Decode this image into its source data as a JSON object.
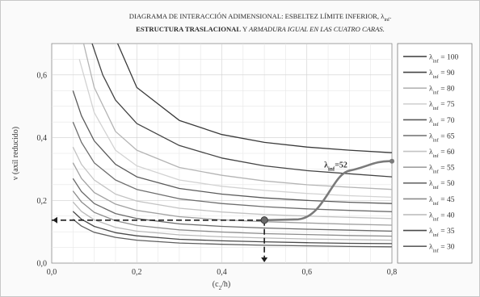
{
  "chart_data": {
    "type": "line",
    "title_line1_main": "DIAGRAMA DE INTERACCIÓN ADIMENSIONAL: ESBELTEZ LÍMITE INFERIOR, λ",
    "title_line1_sub": "inf",
    "title_line2_bold": "ESTRUCTURA TRASLACIONAL",
    "title_line2_joiner": " Y ",
    "title_line2_italic": "ARMADURA IGUAL EN LAS CUATRO CARAS.",
    "xlabel": "(c2/h)",
    "xlabel_pre": "(c",
    "xlabel_sub": "2",
    "xlabel_post": "/h)",
    "ylabel": "ν (axil reducido)",
    "xlim": [
      0,
      0.8
    ],
    "ylim": [
      0,
      0.7
    ],
    "x_ticks": [
      0,
      0.2,
      0.4,
      0.6,
      0.8
    ],
    "x_tick_labels": [
      "0,0",
      "0,2",
      "0,4",
      "0,6",
      "0,8"
    ],
    "y_ticks": [
      0,
      0.2,
      0.4,
      0.6
    ],
    "y_tick_labels": [
      "0,0",
      "0,2",
      "0,4",
      "0,6"
    ],
    "grid": true,
    "legend_position": "right",
    "legend_label_pre": "λ",
    "legend_label_sub": "inf",
    "series": [
      {
        "name": "λinf = 100",
        "label_value": "100",
        "color": "#3a3a3a",
        "points": [
          [
            0.155,
            0.7
          ],
          [
            0.2,
            0.56
          ],
          [
            0.3,
            0.455
          ],
          [
            0.4,
            0.41
          ],
          [
            0.5,
            0.385
          ],
          [
            0.6,
            0.37
          ],
          [
            0.7,
            0.36
          ],
          [
            0.8,
            0.352
          ]
        ]
      },
      {
        "name": "λinf = 90",
        "label_value": "90",
        "color": "#444444",
        "points": [
          [
            0.095,
            0.7
          ],
          [
            0.12,
            0.6
          ],
          [
            0.15,
            0.52
          ],
          [
            0.2,
            0.445
          ],
          [
            0.3,
            0.375
          ],
          [
            0.4,
            0.335
          ],
          [
            0.5,
            0.31
          ],
          [
            0.6,
            0.295
          ],
          [
            0.7,
            0.285
          ],
          [
            0.8,
            0.275
          ]
        ]
      },
      {
        "name": "λinf = 80",
        "label_value": "80",
        "color": "#b4b4b4",
        "points": [
          [
            0.075,
            0.7
          ],
          [
            0.1,
            0.56
          ],
          [
            0.15,
            0.42
          ],
          [
            0.2,
            0.36
          ],
          [
            0.3,
            0.305
          ],
          [
            0.4,
            0.28
          ],
          [
            0.5,
            0.262
          ],
          [
            0.6,
            0.25
          ],
          [
            0.7,
            0.242
          ],
          [
            0.8,
            0.235
          ]
        ]
      },
      {
        "name": "λinf = 75",
        "label_value": "75",
        "color": "#d2d2d2",
        "points": [
          [
            0.065,
            0.65
          ],
          [
            0.1,
            0.48
          ],
          [
            0.15,
            0.36
          ],
          [
            0.2,
            0.31
          ],
          [
            0.3,
            0.265
          ],
          [
            0.4,
            0.245
          ],
          [
            0.5,
            0.232
          ],
          [
            0.6,
            0.222
          ],
          [
            0.7,
            0.215
          ],
          [
            0.8,
            0.21
          ]
        ]
      },
      {
        "name": "λinf = 70",
        "label_value": "70",
        "color": "#5a5a5a",
        "points": [
          [
            0.05,
            0.55
          ],
          [
            0.07,
            0.47
          ],
          [
            0.1,
            0.39
          ],
          [
            0.15,
            0.315
          ],
          [
            0.2,
            0.275
          ],
          [
            0.3,
            0.238
          ],
          [
            0.4,
            0.22
          ],
          [
            0.5,
            0.208
          ],
          [
            0.6,
            0.2
          ],
          [
            0.7,
            0.194
          ],
          [
            0.8,
            0.19
          ]
        ]
      },
      {
        "name": "λinf = 65",
        "label_value": "65",
        "color": "#6e6e6e",
        "points": [
          [
            0.05,
            0.45
          ],
          [
            0.07,
            0.385
          ],
          [
            0.1,
            0.32
          ],
          [
            0.15,
            0.265
          ],
          [
            0.2,
            0.235
          ],
          [
            0.3,
            0.205
          ],
          [
            0.4,
            0.19
          ],
          [
            0.5,
            0.18
          ],
          [
            0.6,
            0.173
          ],
          [
            0.7,
            0.168
          ],
          [
            0.8,
            0.164
          ]
        ]
      },
      {
        "name": "λinf = 60",
        "label_value": "60",
        "color": "#c3c3c3",
        "points": [
          [
            0.05,
            0.37
          ],
          [
            0.07,
            0.315
          ],
          [
            0.1,
            0.265
          ],
          [
            0.15,
            0.22
          ],
          [
            0.2,
            0.198
          ],
          [
            0.3,
            0.175
          ],
          [
            0.4,
            0.163
          ],
          [
            0.5,
            0.155
          ],
          [
            0.6,
            0.15
          ],
          [
            0.7,
            0.146
          ],
          [
            0.8,
            0.142
          ]
        ]
      },
      {
        "name": "λinf = 55",
        "label_value": "55",
        "color": "#a0a0a0",
        "points": [
          [
            0.05,
            0.32
          ],
          [
            0.07,
            0.27
          ],
          [
            0.1,
            0.225
          ],
          [
            0.15,
            0.188
          ],
          [
            0.2,
            0.168
          ],
          [
            0.3,
            0.148
          ],
          [
            0.4,
            0.138
          ],
          [
            0.5,
            0.132
          ],
          [
            0.6,
            0.128
          ],
          [
            0.7,
            0.124
          ],
          [
            0.8,
            0.121
          ]
        ]
      },
      {
        "name": "λinf = 50",
        "label_value": "50",
        "color": "#6a6a6a",
        "points": [
          [
            0.05,
            0.27
          ],
          [
            0.07,
            0.228
          ],
          [
            0.1,
            0.19
          ],
          [
            0.15,
            0.158
          ],
          [
            0.2,
            0.142
          ],
          [
            0.3,
            0.125
          ],
          [
            0.4,
            0.117
          ],
          [
            0.5,
            0.112
          ],
          [
            0.6,
            0.108
          ],
          [
            0.7,
            0.105
          ],
          [
            0.8,
            0.102
          ]
        ]
      },
      {
        "name": "λinf = 45",
        "label_value": "45",
        "color": "#8c8c8c",
        "points": [
          [
            0.05,
            0.23
          ],
          [
            0.07,
            0.195
          ],
          [
            0.1,
            0.162
          ],
          [
            0.15,
            0.135
          ],
          [
            0.2,
            0.12
          ],
          [
            0.3,
            0.106
          ],
          [
            0.4,
            0.099
          ],
          [
            0.5,
            0.094
          ],
          [
            0.6,
            0.091
          ],
          [
            0.7,
            0.088
          ],
          [
            0.8,
            0.086
          ]
        ]
      },
      {
        "name": "λinf = 40",
        "label_value": "40",
        "color": "#b9b9b9",
        "points": [
          [
            0.05,
            0.195
          ],
          [
            0.07,
            0.165
          ],
          [
            0.1,
            0.138
          ],
          [
            0.15,
            0.114
          ],
          [
            0.2,
            0.102
          ],
          [
            0.3,
            0.09
          ],
          [
            0.4,
            0.084
          ],
          [
            0.5,
            0.08
          ],
          [
            0.6,
            0.077
          ],
          [
            0.7,
            0.075
          ],
          [
            0.8,
            0.073
          ]
        ]
      },
      {
        "name": "λinf = 35",
        "label_value": "35",
        "color": "#4a4a4a",
        "points": [
          [
            0.05,
            0.165
          ],
          [
            0.07,
            0.14
          ],
          [
            0.1,
            0.117
          ],
          [
            0.15,
            0.097
          ],
          [
            0.2,
            0.087
          ],
          [
            0.3,
            0.076
          ],
          [
            0.4,
            0.071
          ],
          [
            0.5,
            0.068
          ],
          [
            0.6,
            0.065
          ],
          [
            0.7,
            0.063
          ],
          [
            0.8,
            0.062
          ]
        ]
      },
      {
        "name": "λinf = 30",
        "label_value": "30",
        "color": "#5f5f5f",
        "points": [
          [
            0.05,
            0.14
          ],
          [
            0.07,
            0.118
          ],
          [
            0.1,
            0.098
          ],
          [
            0.15,
            0.082
          ],
          [
            0.2,
            0.073
          ],
          [
            0.3,
            0.064
          ],
          [
            0.4,
            0.06
          ],
          [
            0.5,
            0.057
          ],
          [
            0.6,
            0.055
          ],
          [
            0.7,
            0.053
          ],
          [
            0.8,
            0.052
          ]
        ]
      }
    ],
    "annotation": {
      "text_pre": "λ",
      "text_sub": "inf",
      "text_post": "=52",
      "point": [
        0.5,
        0.137
      ],
      "text_anchor_at": [
        0.69,
        0.3
      ],
      "callout_end": [
        0.8,
        0.325
      ],
      "callout_color": "#7a7a7a"
    }
  }
}
